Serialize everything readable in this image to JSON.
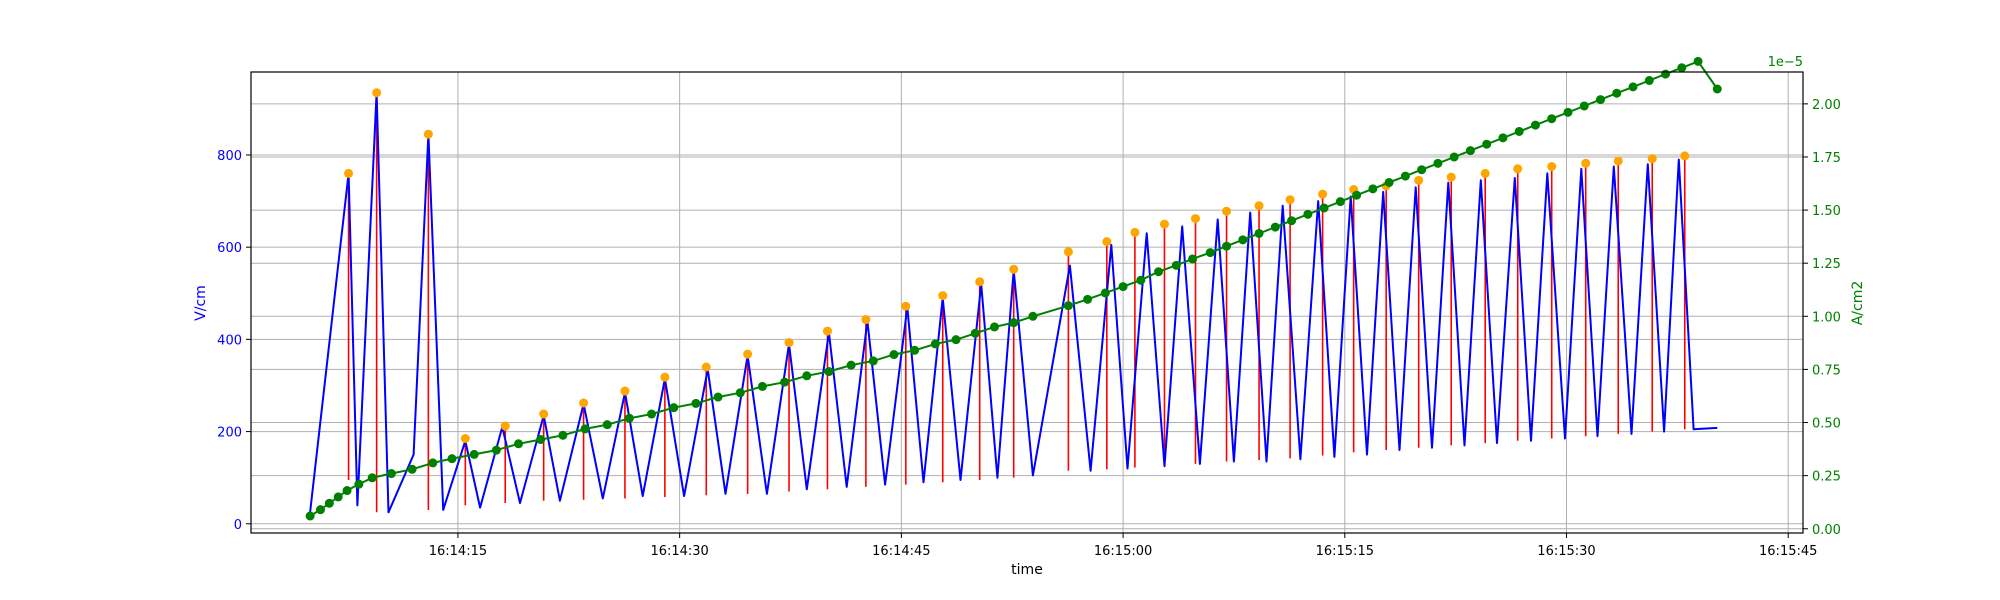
{
  "chart_data": {
    "type": "line",
    "title": "",
    "xlabel": "time",
    "ylabel_left": "V/cm",
    "ylabel_right": "A/cm2",
    "right_axis_offset_text": "1e−5",
    "colors": {
      "field": "#0000ff",
      "peak_line": "#ff0000",
      "peak_marker": "#ffa500",
      "current": "#008000",
      "grid": "#b0b0b0",
      "frame": "#000000"
    },
    "grid": true,
    "x_range": [
      "16:14:01",
      "16:15:46"
    ],
    "x_ticks": [
      "16:14:15",
      "16:14:30",
      "16:14:45",
      "16:15:00",
      "16:15:15",
      "16:15:30",
      "16:15:45"
    ],
    "y_left_range": [
      -20,
      980
    ],
    "y_left_ticks": [
      "0",
      "200",
      "400",
      "600",
      "800"
    ],
    "y_right_range": [
      -2e-07,
      2.15e-05
    ],
    "y_right_ticks": [
      "0.00",
      "0.25",
      "0.50",
      "0.75",
      "1.00",
      "1.25",
      "1.50",
      "1.75",
      "2.00"
    ],
    "field_series": [
      [
        "16:14:05.0",
        25
      ],
      [
        "16:14:07.6",
        760
      ],
      [
        "16:14:08.2",
        40
      ],
      [
        "16:14:09.5",
        935
      ],
      [
        "16:14:10.3",
        25
      ],
      [
        "16:14:12.0",
        150
      ],
      [
        "16:14:13.0",
        845
      ],
      [
        "16:14:14.0",
        30
      ],
      [
        "16:14:15.5",
        180
      ],
      [
        "16:14:16.5",
        35
      ],
      [
        "16:14:18.0",
        210
      ],
      [
        "16:14:19.2",
        45
      ],
      [
        "16:14:20.8",
        235
      ],
      [
        "16:14:21.9",
        50
      ],
      [
        "16:14:23.5",
        260
      ],
      [
        "16:14:24.8",
        55
      ],
      [
        "16:14:26.3",
        285
      ],
      [
        "16:14:27.5",
        60
      ],
      [
        "16:14:29.0",
        315
      ],
      [
        "16:14:30.3",
        60
      ],
      [
        "16:14:31.9",
        335
      ],
      [
        "16:14:33.1",
        65
      ],
      [
        "16:14:34.6",
        365
      ],
      [
        "16:14:35.9",
        65
      ],
      [
        "16:14:37.4",
        390
      ],
      [
        "16:14:38.6",
        75
      ],
      [
        "16:14:40.1",
        415
      ],
      [
        "16:14:41.3",
        80
      ],
      [
        "16:14:42.7",
        440
      ],
      [
        "16:14:43.9",
        85
      ],
      [
        "16:14:45.4",
        470
      ],
      [
        "16:14:46.5",
        90
      ],
      [
        "16:14:47.8",
        490
      ],
      [
        "16:14:49.0",
        95
      ],
      [
        "16:14:50.4",
        520
      ],
      [
        "16:14:51.5",
        100
      ],
      [
        "16:14:52.6",
        550
      ],
      [
        "16:14:53.9",
        105
      ],
      [
        "16:14:56.4",
        560
      ],
      [
        "16:14:57.8",
        115
      ],
      [
        "16:14:59.2",
        605
      ],
      [
        "16:15:00.3",
        120
      ],
      [
        "16:15:01.6",
        630
      ],
      [
        "16:15:02.8",
        125
      ],
      [
        "16:15:04.0",
        645
      ],
      [
        "16:15:05.2",
        130
      ],
      [
        "16:15:06.4",
        660
      ],
      [
        "16:15:07.5",
        135
      ],
      [
        "16:15:08.6",
        675
      ],
      [
        "16:15:09.7",
        135
      ],
      [
        "16:15:10.8",
        690
      ],
      [
        "16:15:12.0",
        140
      ],
      [
        "16:15:13.2",
        700
      ],
      [
        "16:15:14.3",
        145
      ],
      [
        "16:15:15.4",
        710
      ],
      [
        "16:15:16.5",
        150
      ],
      [
        "16:15:17.6",
        720
      ],
      [
        "16:15:18.7",
        160
      ],
      [
        "16:15:19.8",
        730
      ],
      [
        "16:15:20.9",
        165
      ],
      [
        "16:15:22.0",
        740
      ],
      [
        "16:15:23.1",
        170
      ],
      [
        "16:15:24.2",
        745
      ],
      [
        "16:15:25.3",
        175
      ],
      [
        "16:15:26.5",
        750
      ],
      [
        "16:15:27.6",
        180
      ],
      [
        "16:15:28.7",
        760
      ],
      [
        "16:15:29.9",
        185
      ],
      [
        "16:15:31.0",
        770
      ],
      [
        "16:15:32.1",
        190
      ],
      [
        "16:15:33.2",
        775
      ],
      [
        "16:15:34.4",
        195
      ],
      [
        "16:15:35.5",
        780
      ],
      [
        "16:15:36.6",
        200
      ],
      [
        "16:15:37.6",
        790
      ],
      [
        "16:15:38.6",
        205
      ],
      [
        "16:15:40.2",
        208
      ]
    ],
    "peaks": [
      [
        "16:14:07.6",
        760,
        95
      ],
      [
        "16:14:09.5",
        935,
        25
      ],
      [
        "16:14:13.0",
        845,
        30
      ],
      [
        "16:14:15.5",
        185,
        40
      ],
      [
        "16:14:18.2",
        212,
        45
      ],
      [
        "16:14:20.8",
        238,
        50
      ],
      [
        "16:14:23.5",
        262,
        52
      ],
      [
        "16:14:26.3",
        288,
        55
      ],
      [
        "16:14:29.0",
        318,
        58
      ],
      [
        "16:14:31.8",
        340,
        62
      ],
      [
        "16:14:34.6",
        368,
        65
      ],
      [
        "16:14:37.4",
        393,
        70
      ],
      [
        "16:14:40.0",
        418,
        75
      ],
      [
        "16:14:42.6",
        443,
        80
      ],
      [
        "16:14:45.3",
        472,
        85
      ],
      [
        "16:14:47.8",
        495,
        90
      ],
      [
        "16:14:50.3",
        525,
        95
      ],
      [
        "16:14:52.6",
        552,
        100
      ],
      [
        "16:14:56.3",
        590,
        115
      ],
      [
        "16:14:58.9",
        612,
        118
      ],
      [
        "16:15:00.8",
        632,
        122
      ],
      [
        "16:15:02.8",
        650,
        125
      ],
      [
        "16:15:04.9",
        662,
        130
      ],
      [
        "16:15:07.0",
        678,
        135
      ],
      [
        "16:15:09.2",
        690,
        138
      ],
      [
        "16:15:11.3",
        703,
        142
      ],
      [
        "16:15:13.5",
        715,
        148
      ],
      [
        "16:15:15.6",
        725,
        155
      ],
      [
        "16:15:17.8",
        733,
        160
      ],
      [
        "16:15:20.0",
        745,
        165
      ],
      [
        "16:15:22.2",
        752,
        170
      ],
      [
        "16:15:24.5",
        760,
        175
      ],
      [
        "16:15:26.7",
        770,
        180
      ],
      [
        "16:15:29.0",
        775,
        185
      ],
      [
        "16:15:31.3",
        782,
        190
      ],
      [
        "16:15:33.5",
        787,
        195
      ],
      [
        "16:15:35.8",
        792,
        200
      ],
      [
        "16:15:38.0",
        798,
        205
      ]
    ],
    "current_series": [
      [
        "16:14:05.0",
        6e-07
      ],
      [
        "16:14:05.7",
        9e-07
      ],
      [
        "16:14:06.3",
        1.2e-06
      ],
      [
        "16:14:06.9",
        1.5e-06
      ],
      [
        "16:14:07.5",
        1.8e-06
      ],
      [
        "16:14:08.3",
        2.1e-06
      ],
      [
        "16:14:09.2",
        2.4e-06
      ],
      [
        "16:14:10.5",
        2.6e-06
      ],
      [
        "16:14:11.9",
        2.8e-06
      ],
      [
        "16:14:13.3",
        3.1e-06
      ],
      [
        "16:14:14.6",
        3.3e-06
      ],
      [
        "16:14:16.1",
        3.5e-06
      ],
      [
        "16:14:17.6",
        3.7e-06
      ],
      [
        "16:14:19.1",
        4e-06
      ],
      [
        "16:14:20.6",
        4.2e-06
      ],
      [
        "16:14:22.1",
        4.4e-06
      ],
      [
        "16:14:23.6",
        4.7e-06
      ],
      [
        "16:14:25.1",
        4.9e-06
      ],
      [
        "16:14:26.6",
        5.2e-06
      ],
      [
        "16:14:28.1",
        5.4e-06
      ],
      [
        "16:14:29.6",
        5.7e-06
      ],
      [
        "16:14:31.1",
        5.9e-06
      ],
      [
        "16:14:32.6",
        6.2e-06
      ],
      [
        "16:14:34.1",
        6.4e-06
      ],
      [
        "16:14:35.6",
        6.7e-06
      ],
      [
        "16:14:37.1",
        6.9e-06
      ],
      [
        "16:14:38.6",
        7.2e-06
      ],
      [
        "16:14:40.1",
        7.4e-06
      ],
      [
        "16:14:41.6",
        7.7e-06
      ],
      [
        "16:14:43.1",
        7.9e-06
      ],
      [
        "16:14:44.5",
        8.2e-06
      ],
      [
        "16:14:45.9",
        8.4e-06
      ],
      [
        "16:14:47.3",
        8.7e-06
      ],
      [
        "16:14:48.7",
        8.9e-06
      ],
      [
        "16:14:50.0",
        9.2e-06
      ],
      [
        "16:14:51.3",
        9.5e-06
      ],
      [
        "16:14:52.6",
        9.7e-06
      ],
      [
        "16:14:53.9",
        1e-05
      ],
      [
        "16:14:56.3",
        1.05e-05
      ],
      [
        "16:14:57.6",
        1.08e-05
      ],
      [
        "16:14:58.8",
        1.11e-05
      ],
      [
        "16:14:60.0",
        1.14e-05
      ],
      [
        "16:15:01.2",
        1.17e-05
      ],
      [
        "16:15:02.4",
        1.21e-05
      ],
      [
        "16:15:03.6",
        1.24e-05
      ],
      [
        "16:15:04.7",
        1.27e-05
      ],
      [
        "16:15:05.9",
        1.3e-05
      ],
      [
        "16:15:07.0",
        1.33e-05
      ],
      [
        "16:15:08.1",
        1.36e-05
      ],
      [
        "16:15:09.2",
        1.39e-05
      ],
      [
        "16:15:10.3",
        1.42e-05
      ],
      [
        "16:15:11.4",
        1.45e-05
      ],
      [
        "16:15:12.5",
        1.48e-05
      ],
      [
        "16:15:13.6",
        1.51e-05
      ],
      [
        "16:15:14.7",
        1.54e-05
      ],
      [
        "16:15:15.8",
        1.57e-05
      ],
      [
        "16:15:16.9",
        1.6e-05
      ],
      [
        "16:15:18.0",
        1.63e-05
      ],
      [
        "16:15:19.1",
        1.66e-05
      ],
      [
        "16:15:20.2",
        1.69e-05
      ],
      [
        "16:15:21.3",
        1.72e-05
      ],
      [
        "16:15:22.4",
        1.75e-05
      ],
      [
        "16:15:23.5",
        1.78e-05
      ],
      [
        "16:15:24.6",
        1.81e-05
      ],
      [
        "16:15:25.7",
        1.84e-05
      ],
      [
        "16:15:26.8",
        1.87e-05
      ],
      [
        "16:15:27.9",
        1.9e-05
      ],
      [
        "16:15:29.0",
        1.93e-05
      ],
      [
        "16:15:30.1",
        1.96e-05
      ],
      [
        "16:15:31.2",
        1.99e-05
      ],
      [
        "16:15:32.3",
        2.02e-05
      ],
      [
        "16:15:33.4",
        2.05e-05
      ],
      [
        "16:15:34.5",
        2.08e-05
      ],
      [
        "16:15:35.6",
        2.11e-05
      ],
      [
        "16:15:36.7",
        2.14e-05
      ],
      [
        "16:15:37.8",
        2.17e-05
      ],
      [
        "16:15:38.9",
        2.2e-05
      ],
      [
        "16:15:40.2",
        2.07e-05
      ]
    ]
  }
}
